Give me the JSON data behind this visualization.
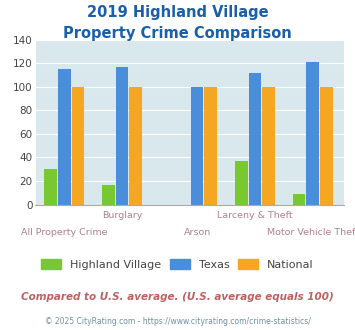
{
  "title_line1": "2019 Highland Village",
  "title_line2": "Property Crime Comparison",
  "categories": [
    "All Property Crime",
    "Burglary",
    "Arson",
    "Larceny & Theft",
    "Motor Vehicle Theft"
  ],
  "highland_village": [
    30,
    17,
    0,
    37,
    9
  ],
  "texas": [
    115,
    117,
    100,
    112,
    121
  ],
  "national": [
    100,
    100,
    100,
    100,
    100
  ],
  "color_hv": "#78c832",
  "color_tx": "#4a8edb",
  "color_nat": "#f5a623",
  "color_title": "#1a5fa8",
  "color_axis_labels": "#b08090",
  "color_bg_chart": "#d8e8ec",
  "color_footnote": "#c06060",
  "color_copyright": "#7090a0",
  "ylim": [
    0,
    140
  ],
  "yticks": [
    0,
    20,
    40,
    60,
    80,
    100,
    120,
    140
  ],
  "subtitle_note": "Compared to U.S. average. (U.S. average equals 100)",
  "copyright": "© 2025 CityRating.com - https://www.cityrating.com/crime-statistics/",
  "legend_labels": [
    "Highland Village",
    "Texas",
    "National"
  ],
  "top_labels": [
    "",
    "Burglary",
    "",
    "Larceny & Theft",
    ""
  ],
  "bottom_labels": [
    "All Property Crime",
    "",
    "Arson",
    "",
    "Motor Vehicle Theft"
  ]
}
